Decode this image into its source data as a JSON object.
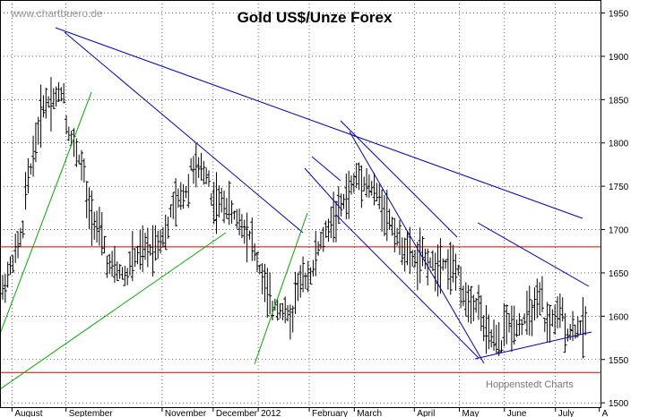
{
  "header": {
    "title": "Gold US$/Unze Forex",
    "watermark": "www.chartbuero.de",
    "source": "Hoppenstedt Charts"
  },
  "colors": {
    "bars": "#000000",
    "trendline_blue": "#0000cc",
    "trendline_green": "#00aa00",
    "support_red": "#dd0000",
    "grid": "#000000"
  },
  "chart_data": {
    "type": "ohlc",
    "title": "Gold US$/Unze Forex",
    "ylim": [
      1495,
      1965
    ],
    "y_ticks": [
      1500,
      1550,
      1600,
      1650,
      1700,
      1750,
      1800,
      1850,
      1900,
      1950
    ],
    "x_labels": [
      "August",
      "September",
      "November",
      "December",
      "2012",
      "February",
      "March",
      "April",
      "May",
      "June",
      "July",
      "A"
    ],
    "grid": "dotted",
    "horizontal_lines": [
      1680,
      1535
    ],
    "price_path_approx": [
      [
        1620,
        1620
      ],
      [
        1640,
        1780
      ],
      [
        1820,
        1920
      ],
      [
        1870,
        1800
      ],
      [
        1780,
        1720
      ],
      [
        1690,
        1630
      ],
      [
        1630,
        1660
      ],
      [
        1690,
        1700
      ],
      [
        1660,
        1700
      ],
      [
        1780,
        1800
      ],
      [
        1770,
        1720
      ],
      [
        1700,
        1730
      ],
      [
        1740,
        1650
      ],
      [
        1620,
        1560
      ],
      [
        1610,
        1630
      ],
      [
        1650,
        1680
      ],
      [
        1690,
        1760
      ],
      [
        1740,
        1760
      ],
      [
        1790,
        1720
      ],
      [
        1690,
        1660
      ],
      [
        1680,
        1660
      ],
      [
        1660,
        1650
      ],
      [
        1670,
        1650
      ],
      [
        1580,
        1570
      ],
      [
        1590,
        1560
      ],
      [
        1590,
        1620
      ],
      [
        1600,
        1620
      ],
      [
        1580,
        1590
      ],
      [
        1580,
        1590
      ]
    ]
  }
}
